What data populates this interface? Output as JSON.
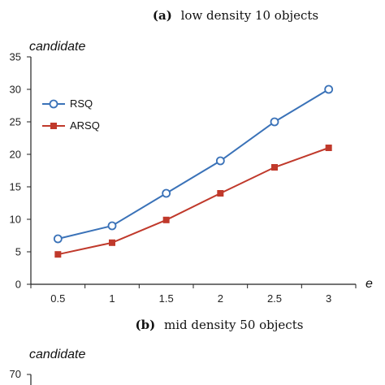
{
  "chart_data": [
    {
      "type": "line",
      "title_tag": "(a)",
      "title": "low density 10 objects",
      "ylabel": "candidate",
      "xlabel": "e",
      "categories": [
        "0.5",
        "1",
        "1.5",
        "2",
        "2.5",
        "3"
      ],
      "ylim": [
        0,
        35
      ],
      "yticks": [
        "0",
        "5",
        "10",
        "15",
        "20",
        "25",
        "30",
        "35"
      ],
      "grid": false,
      "legend_position": "top-left",
      "series": [
        {
          "name": "RSQ",
          "color": "#3a72b8",
          "marker": "open-circle",
          "values": [
            7,
            9,
            14,
            19,
            25,
            30
          ]
        },
        {
          "name": "ARSQ",
          "color": "#c0392b",
          "marker": "filled-square",
          "values": [
            4.6,
            6.4,
            9.9,
            14,
            18,
            21
          ]
        }
      ]
    },
    {
      "type": "line",
      "title_tag": "(b)",
      "title": "mid density 50 objects",
      "ylabel": "candidate",
      "yticks_visible": [
        "70"
      ]
    }
  ]
}
